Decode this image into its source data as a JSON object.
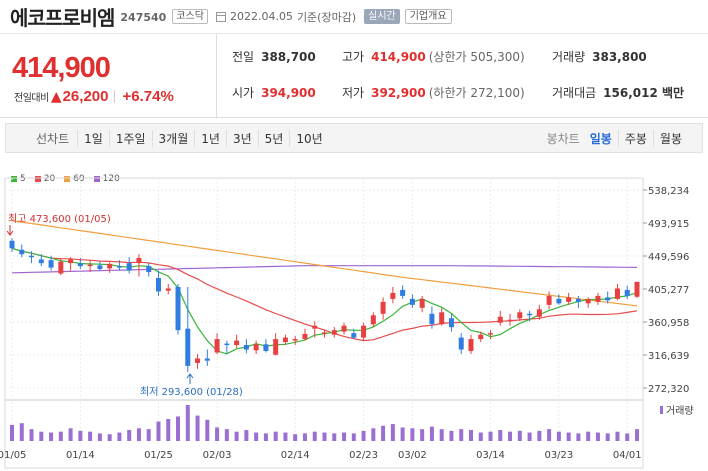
{
  "header": {
    "name": "에코프로비엠",
    "code": "247540",
    "market": "코스닥",
    "date": "2022.04.05",
    "basis": "기준(장마감)",
    "realtime_label": "실시간",
    "company_label": "기업개요"
  },
  "price": {
    "current": "414,900",
    "change_label": "전일대비",
    "change": "26,200",
    "change_pct": "+6.74%"
  },
  "stats": {
    "prev_close": {
      "label": "전일",
      "value": "388,700"
    },
    "high": {
      "label": "고가",
      "value": "414,900",
      "sub": "(상한가 505,300)"
    },
    "volume": {
      "label": "거래량",
      "value": "383,800"
    },
    "open": {
      "label": "시가",
      "value": "394,900"
    },
    "low": {
      "label": "저가",
      "value": "392,900",
      "sub": "(하한가 272,100)"
    },
    "trade_value": {
      "label": "거래대금",
      "value": "156,012 백만"
    }
  },
  "toolbar": {
    "line_label": "선차트",
    "line_periods": [
      "1일",
      "1주일",
      "3개월",
      "1년",
      "3년",
      "5년",
      "10년"
    ],
    "candle_label": "봉차트",
    "candle_periods": [
      "일봉",
      "주봉",
      "월봉"
    ],
    "active_candle": "일봉"
  },
  "chart_data": {
    "type": "candlestick",
    "legend": [
      {
        "name": "5",
        "color": "#3ab53a"
      },
      {
        "name": "20",
        "color": "#e84c4c"
      },
      {
        "name": "60",
        "color": "#f0a040"
      },
      {
        "name": "120",
        "color": "#a066d0"
      }
    ],
    "y_ticks": [
      "538,234",
      "493,915",
      "449,596",
      "405,277",
      "360,958",
      "316,639",
      "272,320"
    ],
    "ylim": [
      272320,
      538234
    ],
    "x_ticks": [
      "01/05",
      "01/14",
      "01/25",
      "02/03",
      "02/14",
      "02/23",
      "03/02",
      "03/14",
      "03/23",
      "04/01"
    ],
    "high_annotation": "최고 473,600 (01/05)",
    "low_annotation": "최저 293,600 (01/28)",
    "volume_label": "거래량",
    "candles": [
      [
        470000,
        473600,
        455000,
        460000
      ],
      [
        458000,
        465000,
        448000,
        452000
      ],
      [
        450000,
        456000,
        440000,
        448000
      ],
      [
        445000,
        452000,
        436000,
        440000
      ],
      [
        444000,
        450000,
        430000,
        434000
      ],
      [
        426000,
        447000,
        424000,
        442000
      ],
      [
        440000,
        448000,
        430000,
        445000
      ],
      [
        440000,
        447000,
        432000,
        436000
      ],
      [
        436000,
        444000,
        428000,
        438000
      ],
      [
        437000,
        443000,
        430000,
        432000
      ],
      [
        433000,
        441000,
        427000,
        439000
      ],
      [
        436000,
        444000,
        430000,
        434000
      ],
      [
        440000,
        448000,
        426000,
        430000
      ],
      [
        440000,
        452000,
        422000,
        447000
      ],
      [
        436000,
        441000,
        422000,
        428000
      ],
      [
        420000,
        430000,
        396000,
        402000
      ],
      [
        403000,
        412000,
        398000,
        406000
      ],
      [
        408000,
        412000,
        344000,
        350000
      ],
      [
        352000,
        408000,
        293600,
        302000
      ],
      [
        306000,
        318000,
        298000,
        312000
      ],
      [
        312000,
        324000,
        302000,
        309000
      ],
      [
        320000,
        346000,
        318000,
        338000
      ],
      [
        332000,
        336000,
        318000,
        330000
      ],
      [
        330000,
        344000,
        326000,
        336000
      ],
      [
        330000,
        338000,
        319000,
        324000
      ],
      [
        323000,
        336000,
        318000,
        331000
      ],
      [
        331000,
        338000,
        320000,
        322000
      ],
      [
        317000,
        346000,
        316000,
        338000
      ],
      [
        334000,
        344000,
        330000,
        340000
      ],
      [
        336000,
        342000,
        330000,
        338000
      ],
      [
        338000,
        352000,
        336000,
        345000
      ],
      [
        352000,
        362000,
        340000,
        356000
      ],
      [
        345000,
        350000,
        340000,
        347000
      ],
      [
        344000,
        354000,
        340000,
        350000
      ],
      [
        348000,
        360000,
        344000,
        356000
      ],
      [
        346000,
        352000,
        338000,
        340000
      ],
      [
        340000,
        360000,
        336000,
        356000
      ],
      [
        358000,
        374000,
        354000,
        370000
      ],
      [
        372000,
        394000,
        364000,
        388000
      ],
      [
        392000,
        408000,
        386000,
        400000
      ],
      [
        404000,
        410000,
        392000,
        396000
      ],
      [
        392000,
        398000,
        380000,
        384000
      ],
      [
        380000,
        396000,
        374000,
        392000
      ],
      [
        372000,
        382000,
        352000,
        358000
      ],
      [
        358000,
        380000,
        356000,
        374000
      ],
      [
        366000,
        372000,
        348000,
        354000
      ],
      [
        340000,
        346000,
        318000,
        324000
      ],
      [
        322000,
        344000,
        318000,
        338000
      ],
      [
        338000,
        348000,
        334000,
        344000
      ],
      [
        344000,
        350000,
        338000,
        346000
      ],
      [
        360000,
        376000,
        356000,
        368000
      ],
      [
        362000,
        372000,
        356000,
        364000
      ],
      [
        366000,
        378000,
        362000,
        374000
      ],
      [
        372000,
        376000,
        362000,
        370000
      ],
      [
        368000,
        384000,
        364000,
        378000
      ],
      [
        384000,
        402000,
        378000,
        396000
      ],
      [
        392000,
        398000,
        384000,
        386000
      ],
      [
        388000,
        400000,
        384000,
        394000
      ],
      [
        392000,
        396000,
        380000,
        388000
      ],
      [
        386000,
        394000,
        380000,
        392000
      ],
      [
        388000,
        400000,
        384000,
        396000
      ],
      [
        394000,
        402000,
        386000,
        390000
      ],
      [
        392000,
        412000,
        390000,
        406000
      ],
      [
        404000,
        410000,
        392000,
        396000
      ],
      [
        394900,
        414900,
        392900,
        414900
      ]
    ],
    "volumes": [
      38,
      42,
      28,
      22,
      20,
      22,
      30,
      24,
      22,
      18,
      16,
      20,
      26,
      30,
      28,
      46,
      52,
      58,
      85,
      60,
      50,
      32,
      28,
      22,
      26,
      20,
      18,
      22,
      20,
      16,
      18,
      22,
      20,
      18,
      20,
      18,
      24,
      30,
      36,
      40,
      32,
      30,
      28,
      34,
      28,
      24,
      28,
      26,
      20,
      22,
      26,
      22,
      24,
      20,
      24,
      28,
      22,
      20,
      18,
      22,
      20,
      18,
      22,
      18,
      28
    ]
  }
}
